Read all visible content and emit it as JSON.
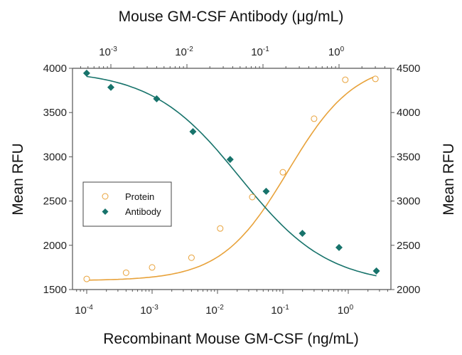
{
  "chart_data": {
    "type": "scatter",
    "title": "Mouse GM-CSF Antibody (μg/mL)",
    "xlabel": "Recombinant Mouse GM-CSF (ng/mL)",
    "x2label": "Mouse GM-CSF Antibody (μg/mL)",
    "ylabel": "Mean RFU",
    "y2label": "Mean RFU",
    "xscale": "log",
    "xlim": [
      6e-05,
      5
    ],
    "x2scale": "log",
    "x2lim": [
      0.0003,
      25
    ],
    "ylim": [
      1500,
      4000
    ],
    "y2lim": [
      2000,
      4500
    ],
    "xticks": [
      "10^-4",
      "10^-3",
      "10^-2",
      "10^-1",
      "10^0"
    ],
    "x2ticks": [
      "10^-3",
      "10^-2",
      "10^-1",
      "10^0"
    ],
    "yticks": [
      1500,
      2000,
      2500,
      3000,
      3500,
      4000
    ],
    "y2ticks": [
      2000,
      2500,
      3000,
      3500,
      4000,
      4500
    ],
    "grid": false,
    "legend_position": "center-left",
    "series": [
      {
        "name": "Protein",
        "axis": "bottom-left",
        "marker": "open-circle",
        "color": "#e8a23a",
        "x": [
          0.0001,
          0.0004,
          0.001,
          0.004,
          0.011,
          0.034,
          0.1,
          0.3,
          0.9,
          2.6
        ],
        "y": [
          1620,
          1690,
          1750,
          1860,
          2190,
          2545,
          2825,
          3430,
          3870,
          3880
        ]
      },
      {
        "name": "Antibody",
        "axis": "top-right",
        "marker": "filled-diamond",
        "color": "#17736b",
        "x": [
          0.00048,
          0.001,
          0.004,
          0.012,
          0.037,
          0.11,
          0.33,
          1.0,
          3.1
        ],
        "y": [
          4445,
          4285,
          4155,
          3785,
          3470,
          3110,
          2635,
          2475,
          2210
        ]
      }
    ]
  }
}
